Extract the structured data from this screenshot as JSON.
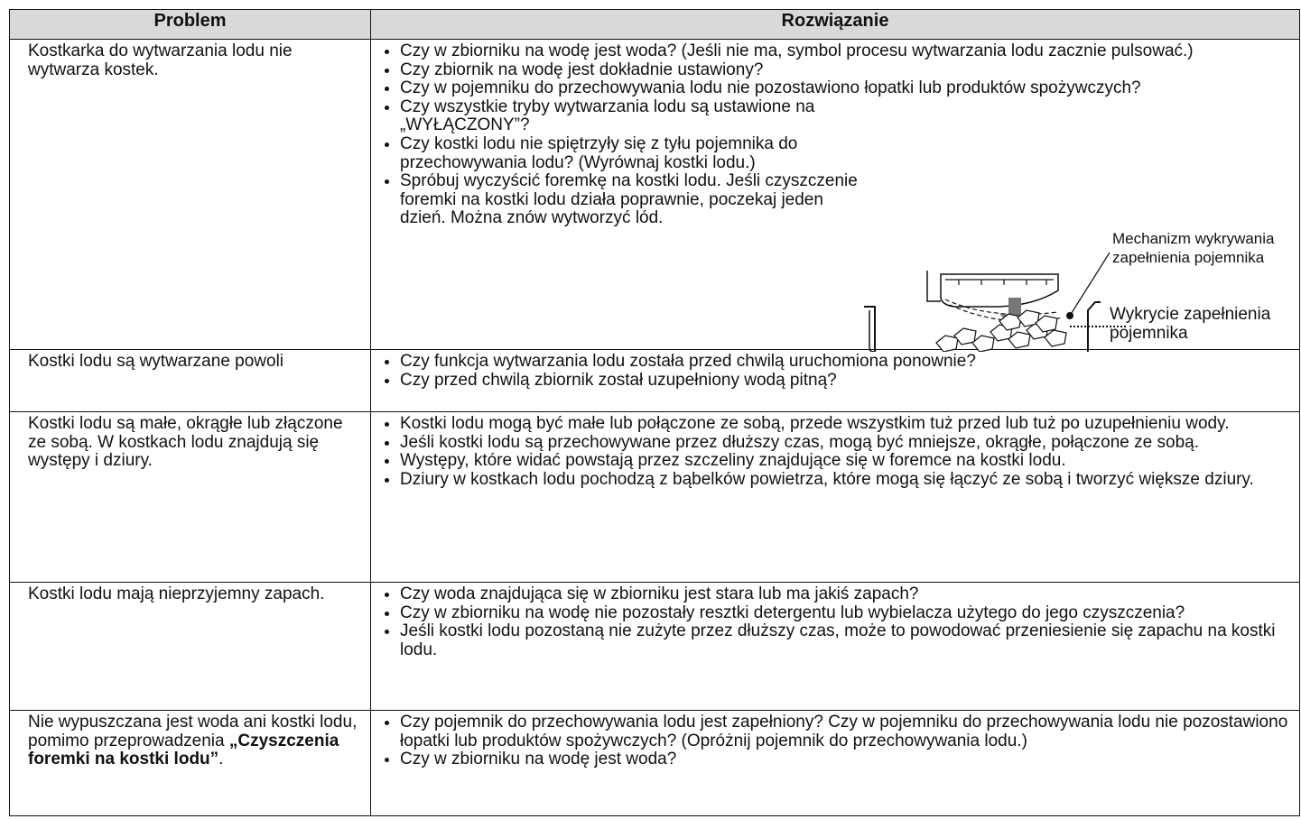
{
  "table": {
    "headers": [
      "Problem",
      "Rozwiązanie"
    ],
    "rows": [
      {
        "problem": [
          "Kostkarka do wytwarzania lodu nie wytwarza kostek."
        ],
        "solutions": [
          "Czy w zbiorniku na wodę jest woda? (Jeśli nie ma, symbol procesu wytwarzania lodu zacznie pulsować.)",
          "Czy zbiornik na wodę jest dokładnie ustawiony?",
          "Czy w pojemniku do przechowywania lodu nie pozostawiono łopatki lub produktów spożywczych?",
          "Czy wszystkie tryby wytwarzania lodu są ustawione na „WYŁĄCZONY”?",
          "Czy kostki lodu nie spiętrzyły się z tyłu pojemnika do przechowywania lodu? (Wyrównaj kostki lodu.)",
          "Spróbuj wyczyścić foremkę na kostki lodu. Jeśli czyszczenie foremki na kostki lodu działa poprawnie, poczekaj jeden dzień. Można znów wytworzyć lód."
        ]
      },
      {
        "problem": [
          "Kostki lodu są wytwarzane powoli"
        ],
        "solutions": [
          "Czy funkcja wytwarzania lodu została przed chwilą uruchomiona ponownie?",
          "Czy przed chwilą zbiornik został uzupełniony wodą pitną?"
        ]
      },
      {
        "problem": [
          "Kostki lodu są małe, okrągłe lub złączone ze sobą. W kostkach lodu znajdują się występy i dziury."
        ],
        "solutions": [
          "Kostki lodu mogą być małe lub połączone ze sobą, przede wszystkim tuż przed lub tuż po uzupełnieniu wody.",
          "Jeśli kostki lodu są przechowywane przez dłuższy czas, mogą być mniejsze, okrągłe, połączone ze sobą.",
          "Występy, które widać powstają przez szczeliny znajdujące się w foremce na kostki lodu.",
          "Dziury w kostkach lodu pochodzą z bąbelków powietrza, które mogą się łączyć ze sobą i tworzyć większe dziury."
        ]
      },
      {
        "problem": [
          "Kostki lodu mają nieprzyjemny zapach."
        ],
        "solutions": [
          "Czy woda znajdująca się w zbiorniku jest stara lub ma jakiś zapach?",
          "Czy w zbiorniku na wodę nie pozostały resztki detergentu lub wybielacza użytego do jego czyszczenia?",
          "Jeśli kostki lodu pozostaną nie zużyte przez dłuższy czas, może to powodować przeniesienie się zapachu na kostki lodu."
        ]
      },
      {
        "problem": [
          "Nie wypuszczana jest woda ani kostki lodu, pomimo przeprowadzenia ",
          "„Czyszczenia foremki na kostki lodu”",
          "."
        ],
        "solutions": [
          "Czy pojemnik do przechowywania lodu jest zapełniony? Czy w pojemniku do przechowywania lodu nie pozostawiono łopatki lub produktów spożywczych? (Opróżnij pojemnik do przechowywania lodu.)",
          "Czy w zbiorniku na wodę jest woda?"
        ]
      }
    ]
  },
  "figure": {
    "sensor_label": [
      "Mechanizm wykrywania",
      "zapełnienia pojemnika"
    ],
    "full_label": [
      "Wykrycie zapełnienia",
      "pojemnika"
    ]
  }
}
